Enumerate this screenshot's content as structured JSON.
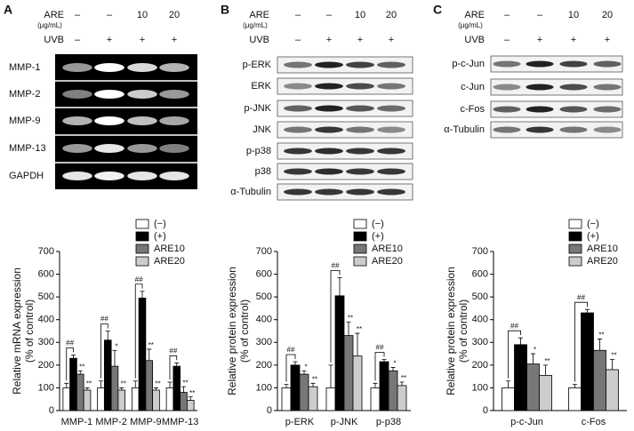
{
  "panels": [
    {
      "letter": "A",
      "are_label": "ARE",
      "unit": "(μg/mL)",
      "uvb_label": "UVB",
      "are_values": [
        "–",
        "–",
        "10",
        "20"
      ],
      "uvb_values": [
        "–",
        "+",
        "+",
        "+"
      ],
      "rows": [
        "MMP-1",
        "MMP-2",
        "MMP-9",
        "MMP-13",
        "GAPDH"
      ]
    },
    {
      "letter": "B",
      "are_label": "ARE",
      "unit": "(μg/mL)",
      "uvb_label": "UVB",
      "are_values": [
        "–",
        "–",
        "10",
        "20"
      ],
      "uvb_values": [
        "–",
        "+",
        "+",
        "+"
      ],
      "rows": [
        "p-ERK",
        "ERK",
        "p-JNK",
        "JNK",
        "p-p38",
        "p38",
        "α-Tubulin"
      ]
    },
    {
      "letter": "C",
      "are_label": "ARE",
      "unit": "(μg/mL)",
      "uvb_label": "UVB",
      "are_values": [
        "–",
        "–",
        "10",
        "20"
      ],
      "uvb_values": [
        "–",
        "+",
        "+",
        "+"
      ],
      "rows": [
        "p-c-Jun",
        "c-Jun",
        "c-Fos",
        "α-Tubulin"
      ]
    }
  ],
  "chart_data": [
    {
      "type": "bar",
      "ylabel": [
        "Relative mRNA expression",
        "(% of control)"
      ],
      "categories": [
        "MMP-1",
        "MMP-2",
        "MMP-9",
        "MMP-13"
      ],
      "ylim": [
        0,
        700
      ],
      "yticks": [
        0,
        100,
        200,
        300,
        400,
        500,
        600,
        700
      ],
      "series": [
        {
          "name": "(−)",
          "color": "#ffffff",
          "values": [
            100,
            100,
            100,
            100
          ],
          "errors": [
            20,
            30,
            30,
            25
          ],
          "significance": [
            null,
            null,
            null,
            null
          ]
        },
        {
          "name": "(+)",
          "color": "#000000",
          "values": [
            230,
            310,
            495,
            195
          ],
          "errors": [
            15,
            40,
            30,
            15
          ],
          "significance": [
            "##",
            "##",
            "##",
            "##"
          ]
        },
        {
          "name": "ARE10",
          "color": "#777777",
          "values": [
            160,
            195,
            220,
            80
          ],
          "errors": [
            15,
            70,
            50,
            25
          ],
          "significance": [
            "**",
            "*",
            "**",
            "**"
          ]
        },
        {
          "name": "ARE20",
          "color": "#cccccc",
          "values": [
            90,
            90,
            90,
            45
          ],
          "errors": [
            10,
            10,
            10,
            15
          ],
          "significance": [
            "**",
            "**",
            "**",
            "**"
          ]
        }
      ]
    },
    {
      "type": "bar",
      "ylabel": [
        "Relative protein expression",
        "(% of control)"
      ],
      "categories": [
        "p-ERK",
        "p-JNK",
        "p-p38"
      ],
      "ylim": [
        0,
        700
      ],
      "yticks": [
        0,
        100,
        200,
        300,
        400,
        500,
        600,
        700
      ],
      "series": [
        {
          "name": "(−)",
          "color": "#ffffff",
          "values": [
            100,
            100,
            100
          ],
          "errors": [
            15,
            100,
            20
          ],
          "significance": [
            null,
            null,
            null
          ]
        },
        {
          "name": "(+)",
          "color": "#000000",
          "values": [
            200,
            505,
            215
          ],
          "errors": [
            15,
            80,
            10
          ],
          "significance": [
            "##",
            "##",
            "##"
          ]
        },
        {
          "name": "ARE10",
          "color": "#777777",
          "values": [
            160,
            330,
            175
          ],
          "errors": [
            15,
            60,
            15
          ],
          "significance": [
            "*",
            "**",
            "*"
          ]
        },
        {
          "name": "ARE20",
          "color": "#cccccc",
          "values": [
            105,
            240,
            110
          ],
          "errors": [
            15,
            100,
            15
          ],
          "significance": [
            "**",
            "**",
            "**"
          ]
        }
      ]
    },
    {
      "type": "bar",
      "ylabel": [
        "Relative protein expression",
        "(% of control)"
      ],
      "categories": [
        "p-c-Jun",
        "c-Fos"
      ],
      "ylim": [
        0,
        700
      ],
      "yticks": [
        0,
        100,
        200,
        300,
        400,
        500,
        600,
        700
      ],
      "series": [
        {
          "name": "(−)",
          "color": "#ffffff",
          "values": [
            100,
            100
          ],
          "errors": [
            30,
            15
          ],
          "significance": [
            null,
            null
          ]
        },
        {
          "name": "(+)",
          "color": "#000000",
          "values": [
            290,
            430
          ],
          "errors": [
            30,
            15
          ],
          "significance": [
            "##",
            "##"
          ]
        },
        {
          "name": "ARE10",
          "color": "#777777",
          "values": [
            205,
            265
          ],
          "errors": [
            45,
            50
          ],
          "significance": [
            "*",
            "**"
          ]
        },
        {
          "name": "ARE20",
          "color": "#cccccc",
          "values": [
            155,
            180
          ],
          "errors": [
            45,
            45
          ],
          "significance": [
            "**",
            "**"
          ]
        }
      ]
    }
  ]
}
